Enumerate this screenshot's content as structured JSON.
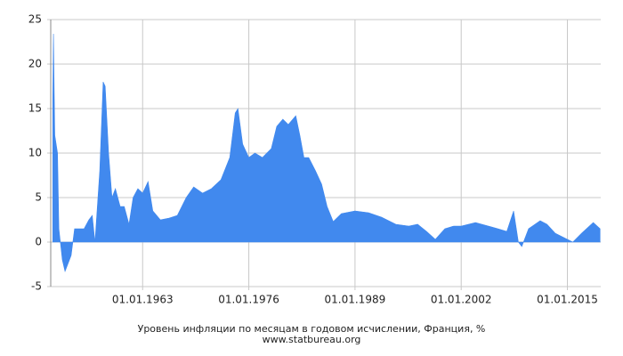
{
  "chart_data": {
    "type": "area",
    "title": "Уровень инфляции по месяцам в годовом исчислении, Франция, %",
    "source": "www.statbureau.org",
    "color": "#4189ee",
    "grid": true,
    "x": [
      "01.01.1952",
      "01.02.1952",
      "01.04.1952",
      "01.08.1952",
      "01.10.1952",
      "01.03.1953",
      "01.07.1953",
      "01.04.1954",
      "01.09.1954",
      "01.11.1955",
      "01.06.1956",
      "01.11.1956",
      "01.03.1957",
      "01.10.1957",
      "01.03.1958",
      "01.06.1958",
      "01.11.1958",
      "01.04.1959",
      "01.09.1959",
      "01.04.1960",
      "01.10.1960",
      "01.05.1961",
      "01.11.1961",
      "01.06.1962",
      "01.01.1963",
      "01.09.1963",
      "01.04.1964",
      "01.03.1965",
      "01.04.1966",
      "01.04.1967",
      "01.05.1968",
      "01.04.1969",
      "01.05.1970",
      "01.06.1971",
      "01.08.1972",
      "01.09.1973",
      "01.05.1974",
      "01.09.1974",
      "01.04.1975",
      "01.01.1976",
      "01.10.1976",
      "01.09.1977",
      "01.10.1978",
      "01.06.1979",
      "01.03.1980",
      "01.11.1980",
      "01.10.1981",
      "01.04.1982",
      "01.10.1982",
      "01.05.1983",
      "01.03.1984",
      "01.12.1984",
      "01.08.1985",
      "01.05.1986",
      "01.05.1987",
      "01.01.1989",
      "01.09.1990",
      "01.04.1992",
      "01.01.1994",
      "01.08.1995",
      "01.09.1996",
      "01.10.1997",
      "01.11.1998",
      "01.01.2000",
      "01.02.2001",
      "01.01.2002",
      "01.10.2003",
      "01.05.2005",
      "01.07.2006",
      "01.08.2007",
      "01.06.2008",
      "01.01.2009",
      "01.06.2009",
      "01.04.2010",
      "01.09.2011",
      "01.07.2012",
      "01.07.2013",
      "01.08.2014",
      "01.09.2015",
      "01.10.2016",
      "01.03.2018",
      "01.01.2019"
    ],
    "values": [
      16,
      23.4,
      12,
      10,
      1.5,
      -2,
      -3.3,
      -1.5,
      1.5,
      1.5,
      2.5,
      3,
      0,
      8,
      18,
      17.5,
      10,
      5,
      6,
      4,
      4,
      2,
      5,
      6,
      5.5,
      6.8,
      3.5,
      2.5,
      2.7,
      3,
      5,
      6.2,
      5.5,
      6,
      7,
      9.5,
      14.5,
      15,
      11,
      9.5,
      10,
      9.5,
      10.5,
      13,
      13.8,
      13.2,
      14.2,
      12,
      9.5,
      9.5,
      8,
      6.5,
      4,
      2.3,
      3.2,
      3.5,
      3.3,
      2.8,
      2,
      1.8,
      2,
      1.2,
      0.3,
      1.5,
      1.8,
      1.8,
      2.2,
      1.8,
      1.5,
      1.2,
      3.5,
      0,
      -0.5,
      1.5,
      2.4,
      2,
      1,
      0.5,
      0,
      1,
      2.2,
      1.5
    ],
    "xlim": [
      "01.10.1951",
      "01.02.2019"
    ],
    "xticks": [
      "01.01.1963",
      "01.01.1976",
      "01.01.1989",
      "01.01.2002",
      "01.01.2015"
    ],
    "ylim": [
      -5,
      25
    ],
    "yticks": [
      -5,
      0,
      5,
      10,
      15,
      20,
      25
    ]
  }
}
